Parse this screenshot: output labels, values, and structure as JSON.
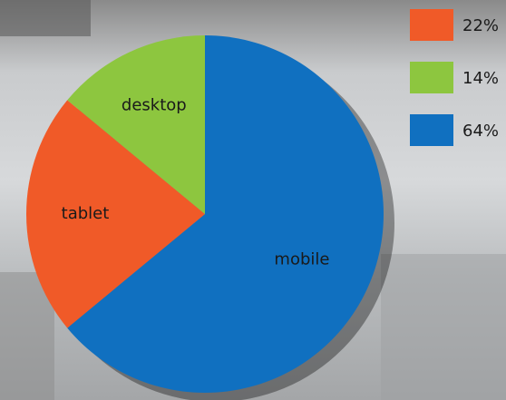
{
  "chart_data": {
    "type": "pie",
    "categories": [
      "mobile",
      "tablet",
      "desktop"
    ],
    "values": [
      64,
      22,
      14
    ],
    "value_labels": [
      "64%",
      "22%",
      "14%"
    ],
    "colors": [
      "#1070c0",
      "#f05a28",
      "#8dc63f"
    ]
  }
}
